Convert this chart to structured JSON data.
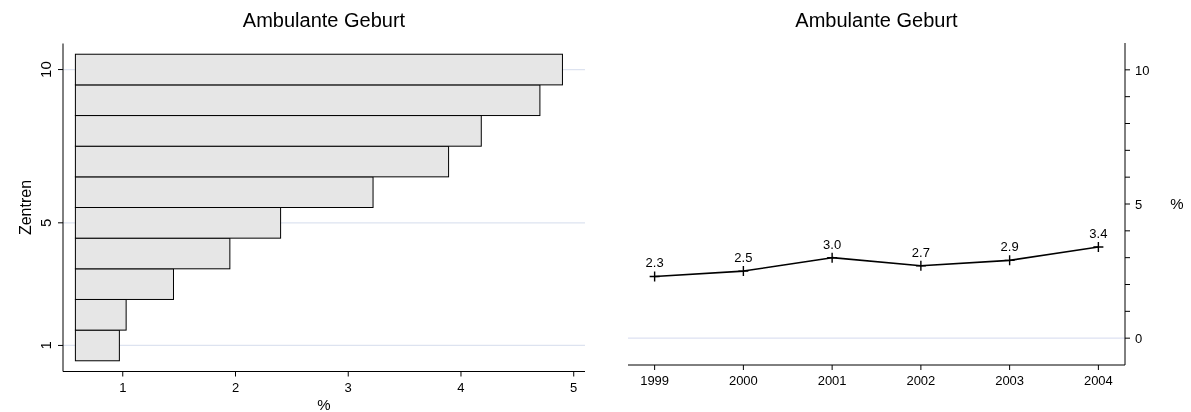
{
  "chart_data": [
    {
      "type": "bar",
      "orientation": "horizontal",
      "title": "Ambulante Geburt",
      "xlabel": "%",
      "ylabel": "Zentren",
      "x": [
        1,
        2,
        3,
        4,
        5,
        6,
        7,
        8,
        9,
        10
      ],
      "base": [
        0.58,
        0.58,
        0.58,
        0.58,
        0.58,
        0.58,
        0.58,
        0.58,
        0.58,
        0.58
      ],
      "values": [
        0.39,
        0.45,
        0.87,
        1.37,
        1.82,
        2.64,
        3.31,
        3.6,
        4.12,
        4.32
      ],
      "color": "#e6e6e6",
      "xlim": [
        0.47,
        5.1
      ],
      "xticks": [
        1,
        2,
        3,
        4,
        5
      ],
      "ylim": [
        0.15,
        10.85
      ],
      "yticks": [
        1,
        5,
        10
      ],
      "grid": "y"
    },
    {
      "type": "line",
      "title": "Ambulante Geburt",
      "ylabel": "%",
      "x": [
        1999,
        2000,
        2001,
        2002,
        2003,
        2004
      ],
      "values": [
        2.3,
        2.5,
        3.0,
        2.7,
        2.9,
        3.4
      ],
      "value_labels": [
        "2.3",
        "2.5",
        "3.0",
        "2.7",
        "2.9",
        "3.4"
      ],
      "color": "#000000",
      "marker": "cross",
      "xlim": [
        1998.7,
        2004.3
      ],
      "xticks": [
        1999,
        2000,
        2001,
        2002,
        2003,
        2004
      ],
      "ylim": [
        -1,
        11
      ],
      "yticks": [
        0,
        {
          "value": 1,
          "label": null
        },
        {
          "value": 2,
          "label": null
        },
        {
          "value": 3,
          "label": null
        },
        {
          "value": 4,
          "label": null
        },
        5,
        {
          "value": 6,
          "label": null
        },
        {
          "value": 7,
          "label": null
        },
        {
          "value": 8,
          "label": null
        },
        {
          "value": 9,
          "label": null
        },
        10
      ],
      "ref_lines": [
        {
          "axis": "y",
          "value": 0,
          "color": "#dde1f2"
        }
      ]
    }
  ]
}
